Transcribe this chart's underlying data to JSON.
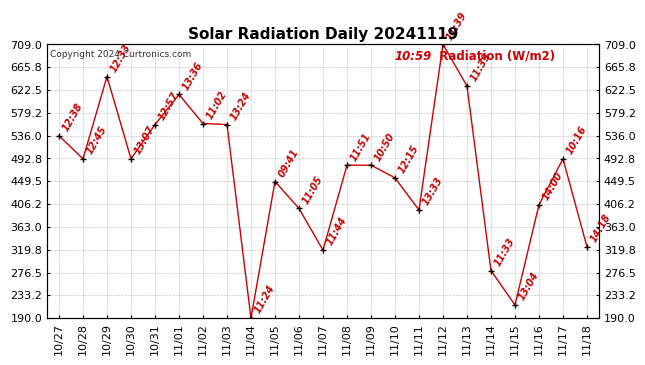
{
  "title": "Solar Radiation Daily 20241119",
  "copyright": "Copyright 2024 Curtronics.com",
  "legend_label": "Radiation (W/m2)",
  "legend_time": "10:59",
  "data_points": [
    {
      "date": "10/27",
      "value": 536,
      "time": "12:38"
    },
    {
      "date": "10/28",
      "value": 492,
      "time": "12:45"
    },
    {
      "date": "10/29",
      "value": 648,
      "time": "12:33"
    },
    {
      "date": "10/30",
      "value": 492,
      "time": "13:07"
    },
    {
      "date": "10/31",
      "value": 557,
      "time": "12:57"
    },
    {
      "date": "11/01",
      "value": 614,
      "time": "13:36"
    },
    {
      "date": "11/02",
      "value": 559,
      "time": "11:02"
    },
    {
      "date": "11/03",
      "value": 557,
      "time": "13:24"
    },
    {
      "date": "11/04",
      "value": 190,
      "time": "11:24"
    },
    {
      "date": "11/05",
      "value": 449,
      "time": "09:41"
    },
    {
      "date": "11/06",
      "value": 398,
      "time": "11:05"
    },
    {
      "date": "11/07",
      "value": 319,
      "time": "11:44"
    },
    {
      "date": "11/08",
      "value": 480,
      "time": "11:51"
    },
    {
      "date": "11/09",
      "value": 480,
      "time": "10:50"
    },
    {
      "date": "11/10",
      "value": 456,
      "time": "12:15"
    },
    {
      "date": "11/11",
      "value": 395,
      "time": "13:33"
    },
    {
      "date": "11/12",
      "value": 709,
      "time": "11:39"
    },
    {
      "date": "11/13",
      "value": 630,
      "time": "11:39"
    },
    {
      "date": "11/14",
      "value": 280,
      "time": "11:33"
    },
    {
      "date": "11/15",
      "value": 215,
      "time": "13:04"
    },
    {
      "date": "11/16",
      "value": 405,
      "time": "14:00"
    },
    {
      "date": "11/17",
      "value": 492,
      "time": "10:16"
    },
    {
      "date": "11/18",
      "value": 325,
      "time": "14:18"
    }
  ],
  "ylim": [
    190,
    709
  ],
  "yticks": [
    190.0,
    233.2,
    276.5,
    319.8,
    363.0,
    406.2,
    449.5,
    492.8,
    536.0,
    579.2,
    622.5,
    665.8,
    709.0
  ],
  "line_color": "#cc0000",
  "marker_color": "#000000",
  "label_color": "#cc0000",
  "grid_color": "#bbbbbb",
  "bg_color": "#ffffff",
  "title_fontsize": 11,
  "tick_fontsize": 8,
  "annotation_fontsize": 7
}
